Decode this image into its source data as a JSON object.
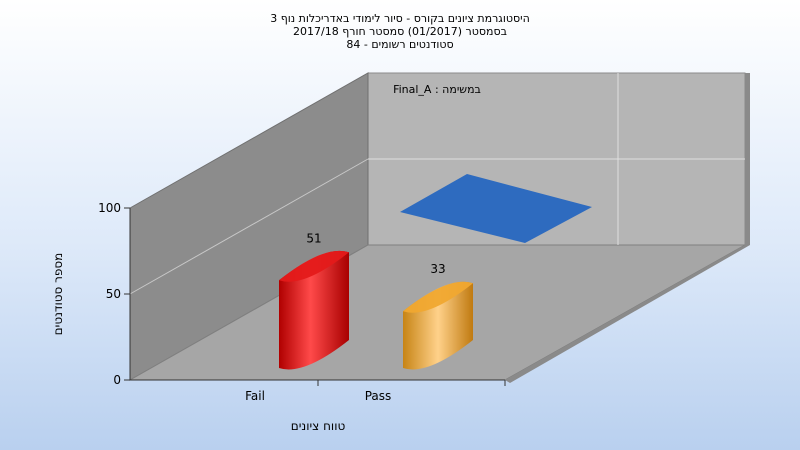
{
  "chart_data": {
    "type": "bar",
    "title_lines": [
      "היסטוגרמת ציונים בקורס - סיור לימודי באדריכלות נוף 3",
      "בסמסטר  (01/2017)  סמסטר חורף 2017/18",
      "סטודנטים רשומים - 84"
    ],
    "xlabel": "טווח ציונים",
    "ylabel": "מספר סטודנטים",
    "categories": [
      "Fail",
      "Pass"
    ],
    "series": [
      {
        "name": "Final_A",
        "values": [
          51,
          33
        ],
        "colors": [
          "#e41a1a",
          "#f0a830"
        ]
      }
    ],
    "legend_text": "במשימה : Final_A",
    "legend_marker_color": "#2e6bbf",
    "y_ticks": [
      0,
      50,
      100
    ],
    "ylim": [
      0,
      100
    ],
    "grid": true,
    "style": "3d-cylinder"
  }
}
